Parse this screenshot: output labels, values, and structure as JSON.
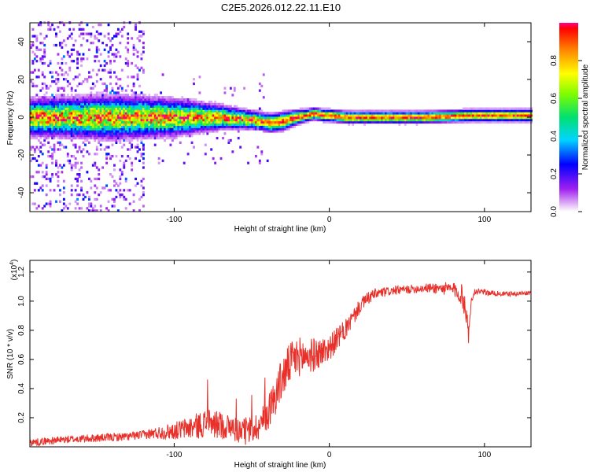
{
  "chart_data": [
    {
      "type": "heatmap",
      "title": "C2E5.2026.012.22.11.E10",
      "xlabel": "Height of straight line (km)",
      "ylabel": "Frequency (Hz)",
      "xlim": [
        -193,
        130
      ],
      "ylim": [
        -50,
        50
      ],
      "xticks": [
        -100,
        0,
        100
      ],
      "xtick_labels": [
        "-100",
        "0",
        "100"
      ],
      "yticks": [
        -40,
        -20,
        0,
        20,
        40
      ],
      "ytick_labels": [
        "-40",
        "-20",
        "0",
        "20",
        "40"
      ],
      "colorbar": {
        "label": "Normalized spectral amplitude",
        "range": [
          0,
          1
        ],
        "ticks": [
          0.0,
          0.2,
          0.4,
          0.6,
          0.8
        ],
        "tick_labels": [
          "0.0",
          "0.2",
          "0.4",
          "0.6",
          "0.8"
        ]
      },
      "ridge_center": {
        "x": [
          -193,
          -100,
          -70,
          -55,
          -45,
          -38,
          -30,
          -22,
          -15,
          -10,
          -5,
          0,
          10,
          30,
          60,
          90,
          130
        ],
        "y": [
          0,
          0,
          0,
          -1,
          -2,
          -3,
          -2,
          0,
          1,
          2,
          1,
          1,
          0,
          0,
          0,
          1,
          1
        ]
      },
      "ridge_halfwidth": {
        "x": [
          -193,
          -140,
          -100,
          -70,
          -50,
          -30,
          -15,
          0,
          130
        ],
        "y": [
          6,
          7,
          6,
          4,
          3,
          3,
          2,
          2,
          2
        ]
      }
    },
    {
      "type": "line",
      "xlabel": "Height of straight line (km)",
      "ylabel": "SNR (10 * v/v)",
      "y_multiplier_label": "(x10",
      "y_multiplier_exp": "4",
      "y_multiplier_close": ")",
      "xlim": [
        -193,
        130
      ],
      "ylim": [
        0,
        1.28
      ],
      "xticks": [
        -100,
        0,
        100
      ],
      "xtick_labels": [
        "-100",
        "0",
        "100"
      ],
      "yticks": [
        0.2,
        0.4,
        0.6,
        0.8,
        1.0,
        1.2
      ],
      "ytick_labels": [
        "0.2",
        "0.4",
        "0.6",
        "0.8",
        "1.0",
        "1.2"
      ],
      "series": [
        {
          "name": "SNR",
          "color": "#e8302a",
          "envelope_x": [
            -193,
            -170,
            -150,
            -130,
            -115,
            -100,
            -90,
            -80,
            -70,
            -60,
            -55,
            -50,
            -45,
            -40,
            -35,
            -30,
            -25,
            -20,
            -15,
            -10,
            -5,
            0,
            5,
            10,
            15,
            20,
            25,
            30,
            40,
            50,
            60,
            70,
            80,
            85,
            88,
            90,
            92,
            95,
            100,
            110,
            120,
            130
          ],
          "envelope_y": [
            0.03,
            0.05,
            0.06,
            0.07,
            0.09,
            0.11,
            0.13,
            0.16,
            0.15,
            0.12,
            0.1,
            0.12,
            0.15,
            0.22,
            0.35,
            0.48,
            0.58,
            0.62,
            0.62,
            0.63,
            0.65,
            0.68,
            0.74,
            0.8,
            0.88,
            0.97,
            1.02,
            1.05,
            1.07,
            1.08,
            1.09,
            1.09,
            1.08,
            1.05,
            0.95,
            0.75,
            1.05,
            1.07,
            1.06,
            1.05,
            1.05,
            1.06
          ],
          "noise_x": [
            -193,
            -120,
            -100,
            -80,
            -60,
            -45,
            -30,
            -15,
            0,
            20,
            40,
            60,
            80,
            88,
            95,
            130
          ],
          "noise_y": [
            0.025,
            0.03,
            0.06,
            0.1,
            0.09,
            0.1,
            0.15,
            0.13,
            0.09,
            0.05,
            0.03,
            0.03,
            0.05,
            0.09,
            0.02,
            0.015
          ]
        }
      ]
    }
  ]
}
